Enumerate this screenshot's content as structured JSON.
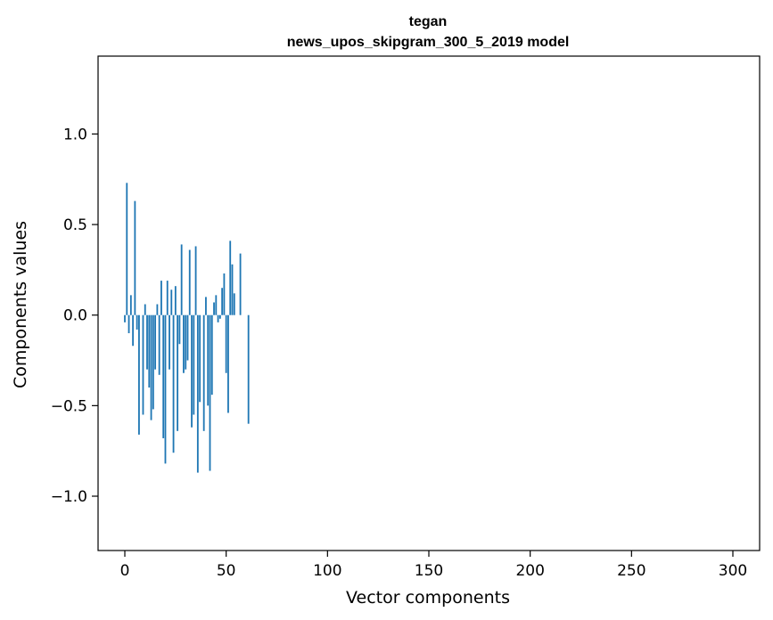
{
  "chart_data": {
    "type": "bar",
    "title": "tegan",
    "subtitle": "news_upos_skipgram_300_5_2019 model",
    "xlabel": "Vector components",
    "ylabel": "Components values",
    "xlim": [
      -13.2,
      313.2
    ],
    "ylim": [
      -1.3,
      1.43
    ],
    "xticks": [
      0,
      50,
      100,
      150,
      200,
      250,
      300
    ],
    "yticks": [
      -1.0,
      -0.5,
      0.0,
      0.5,
      1.0
    ],
    "xtick_labels": [
      "0",
      "50",
      "100",
      "150",
      "200",
      "250",
      "300"
    ],
    "ytick_labels": [
      "−1.0",
      "−0.5",
      "0.0",
      "0.5",
      "1.0"
    ],
    "color": "#1f77b4",
    "values": [
      -0.04,
      0.73,
      -0.1,
      0.11,
      -0.17,
      0.63,
      -0.08,
      -0.66,
      0.0,
      -0.55,
      0.06,
      -0.3,
      -0.4,
      -0.58,
      -0.52,
      -0.3,
      0.06,
      -0.33,
      0.19,
      -0.68,
      -0.82,
      0.19,
      -0.3,
      0.14,
      -0.76,
      0.16,
      -0.64,
      -0.16,
      0.39,
      -0.32,
      -0.3,
      -0.25,
      0.36,
      -0.62,
      -0.55,
      0.38,
      -0.87,
      -0.48,
      0.0,
      -0.64,
      0.1,
      -0.5,
      -0.86,
      -0.44,
      0.07,
      0.11,
      -0.04,
      -0.02,
      0.15,
      0.23,
      -0.32,
      -0.54,
      0.41,
      0.28,
      0.12,
      0.0,
      0.0,
      0.34,
      0.0,
      0.0,
      0.0,
      -0.6,
      0.0,
      0.0,
      0.0,
      0.0,
      0.0,
      0.0,
      0.0,
      0.0,
      0.0,
      0.0,
      0.0,
      0.0,
      0.0,
      0.0,
      0.0,
      0.0,
      0.0,
      0.0,
      0.0,
      0.0,
      0.0,
      0.0,
      0.0,
      0.0,
      0.0,
      0.0,
      0.0,
      0.0,
      0.0,
      0.0,
      0.0,
      0.0,
      0.0,
      0.0,
      0.0,
      0.0,
      0.0,
      0.0,
      0.0,
      0.0,
      0.0,
      0.0,
      0.0,
      0.0,
      0.0,
      0.0,
      0.0,
      0.0,
      0.0,
      0.0,
      0.0,
      0.0,
      0.0,
      0.0,
      0.0,
      0.0,
      0.0,
      0.0,
      0.0,
      0.0,
      0.0,
      0.0,
      0.0,
      0.0,
      0.0,
      0.0,
      0.0,
      0.0,
      0.0,
      0.0,
      0.0,
      0.0,
      0.0,
      0.0,
      0.0,
      0.0,
      0.0,
      0.0,
      0.0,
      0.0,
      0.0,
      0.0,
      0.0,
      0.0,
      0.0,
      0.0,
      0.0,
      0.0,
      0.0,
      0.0,
      0.0,
      0.0,
      0.0,
      0.0,
      0.0,
      0.0,
      0.0,
      0.0,
      0.0,
      0.0,
      0.0,
      0.0,
      0.0,
      0.0,
      0.0,
      0.0,
      0.0,
      0.0,
      0.0,
      0.0,
      0.0,
      0.0,
      0.0,
      0.0,
      0.0,
      0.0,
      0.0,
      0.0,
      0.0,
      0.0,
      0.0,
      0.0,
      0.0,
      0.0,
      0.0,
      0.0,
      0.0,
      0.0,
      0.0,
      0.0,
      0.0,
      0.0,
      0.0,
      0.0,
      0.0,
      0.0,
      0.0,
      0.0,
      0.0,
      0.0,
      0.0,
      0.0,
      0.0,
      0.0,
      0.0,
      0.0,
      0.0,
      0.0,
      0.0,
      0.0,
      0.0,
      0.0,
      0.0,
      0.0,
      0.0,
      0.0,
      0.0,
      0.0,
      0.0,
      0.0,
      0.0,
      0.0,
      0.0,
      0.0,
      0.0,
      0.0,
      0.0,
      0.0,
      0.0,
      0.0,
      0.0,
      0.0,
      0.0,
      0.0,
      0.0,
      0.0,
      0.0,
      0.0,
      0.0,
      0.0,
      0.0,
      0.0,
      0.0,
      0.0,
      0.0,
      0.0,
      0.0,
      0.0,
      0.0,
      0.0,
      0.0,
      0.0,
      0.0,
      0.0,
      0.0,
      0.0,
      0.0,
      0.0,
      0.0,
      0.0,
      0.0,
      0.0,
      0.0,
      0.0,
      0.0,
      0.0,
      0.0,
      0.0,
      0.0,
      0.0,
      0.0,
      0.0,
      0.0,
      0.0,
      0.0,
      0.0,
      0.0,
      0.0,
      0.0,
      0.0,
      0.0,
      0.0,
      0.0,
      0.0,
      0.0,
      0.0,
      0.0,
      0.0,
      0.0,
      0.0,
      0.0,
      0.0,
      0.0,
      0.0,
      0.0,
      0.0
    ]
  }
}
